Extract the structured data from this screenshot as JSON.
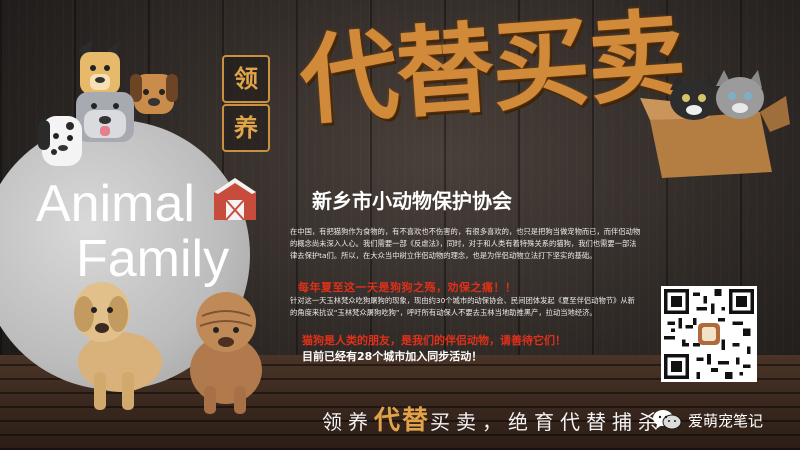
{
  "badge": {
    "top": "领",
    "bottom": "养"
  },
  "title": "代替买卖",
  "brand": {
    "line1": "Animal",
    "line2": "Family"
  },
  "organization": "新乡市小动物保护协会",
  "paragraph1": "在中国，有把猫狗作为食物的，有不喜欢也不伤害的，有很多喜欢的，也只是把狗当做宠物而已，而伴侣动物的概念尚未深入人心。我们需要一部《反虐法》，同时，对于和人类有着特殊关系的猫狗，我们也需要一部法律去保护ta们。所以，在大众当中树立伴侣动物的理念，也是为伴侣动物立法打下坚实的基础。",
  "slogan1": "每年夏至这一天是狗狗之殇，劝保之痛！！",
  "paragraph2": "针对这一天玉林梵众吃狗屠狗的现象，现由约30个城市的动保协会、民间团体发起《夏至伴侣动物节》从新的角度来抗议“玉林梵众屠狗吃狗”，呼吁所有动保人不要去玉林当地助推黑产，拉动当地经济。",
  "slogan2": "猫狗是人类的朋友，是我们的伴侣动物，请善待它们！",
  "cities_line": "目前已经有28个城市加入同步活动！",
  "bottom": {
    "p1": "领养",
    "hl1": "代替",
    "p2": "买卖，绝育代替捕杀"
  },
  "wechat": {
    "name": "爱萌宠笔记",
    "icon": "wechat-icon"
  },
  "colors": {
    "accent": "#d08a3a",
    "red": "#e0301a",
    "white": "#ffffff"
  }
}
